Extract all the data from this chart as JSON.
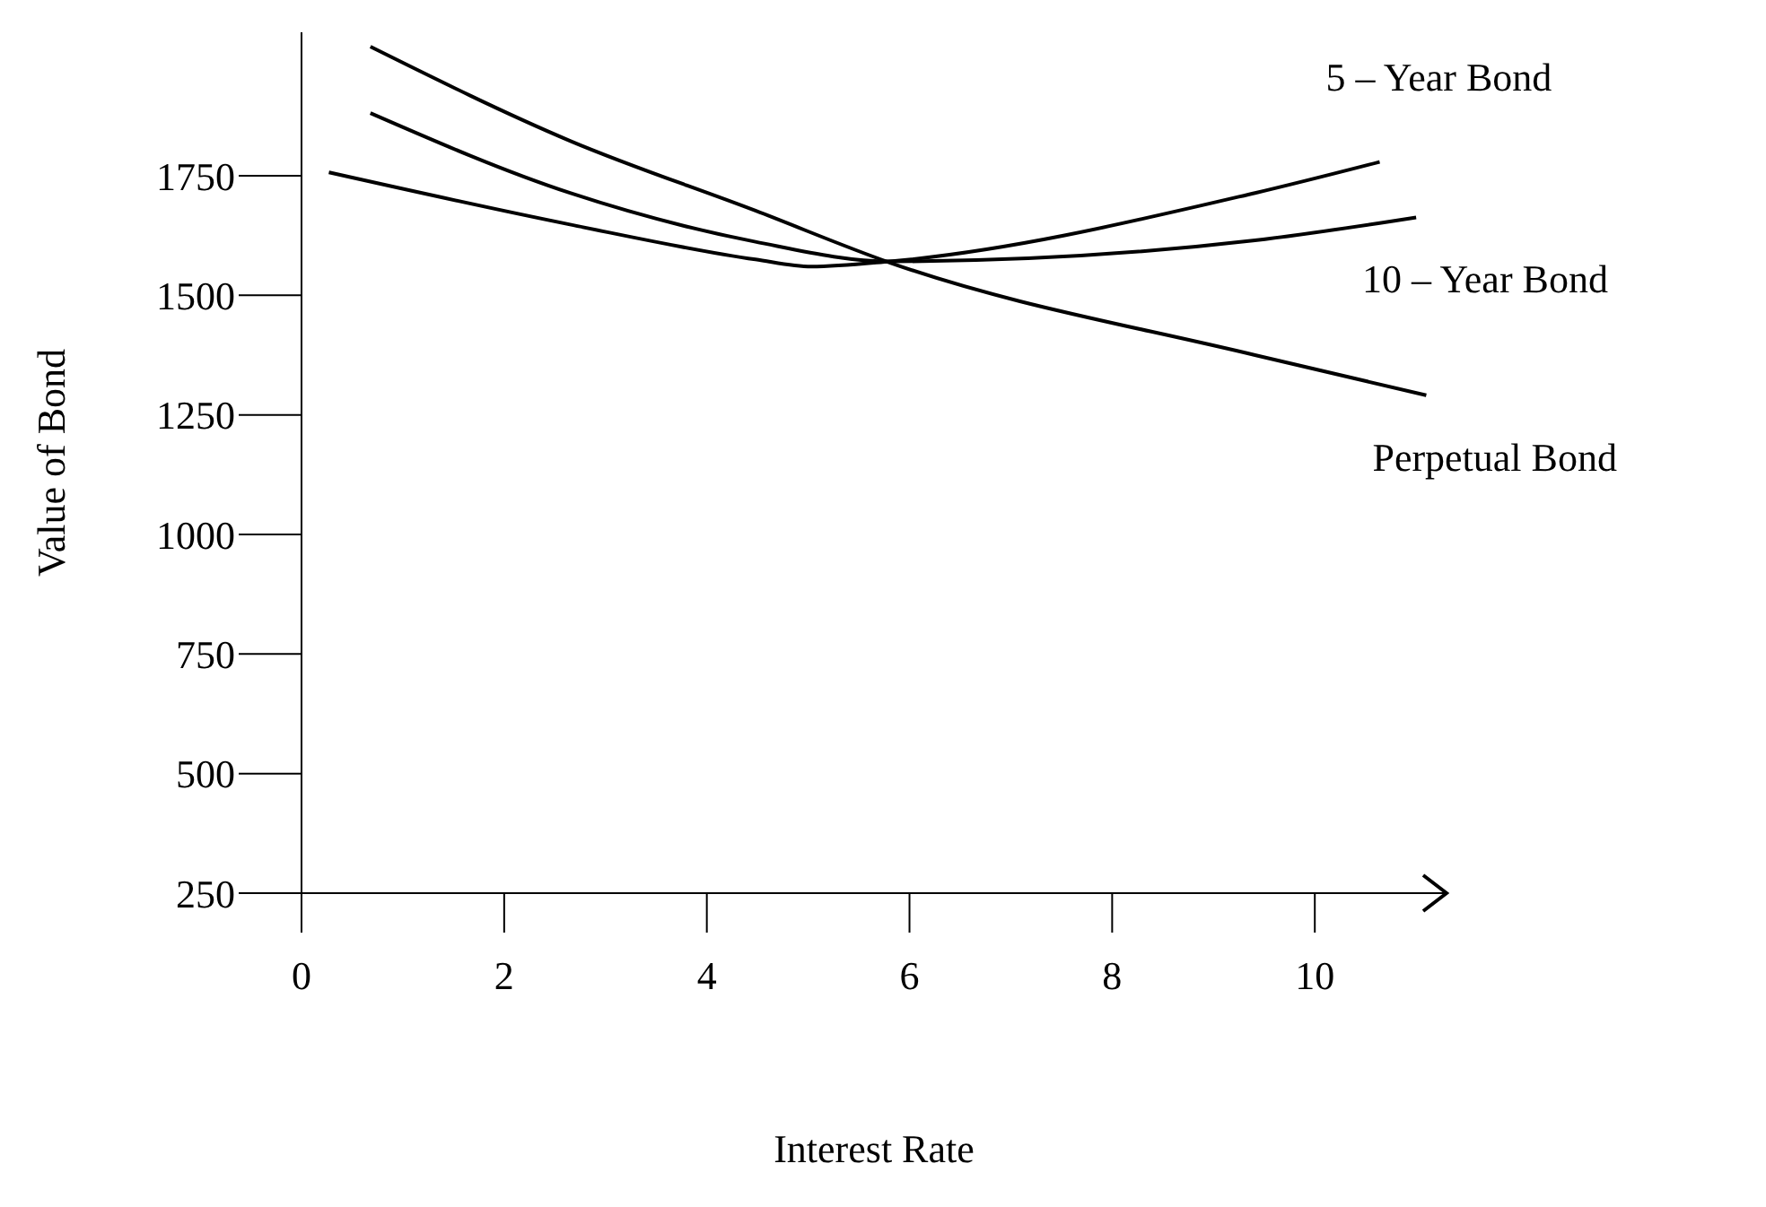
{
  "chart_data": {
    "type": "line",
    "xlabel": "Interest Rate",
    "ylabel": "Value of Bond",
    "xlim": [
      0,
      11.3
    ],
    "xticks": [
      0,
      2,
      4,
      6,
      8,
      10
    ],
    "ylim": [
      250,
      2050
    ],
    "yticks": [
      250,
      500,
      750,
      1000,
      1250,
      1500,
      1750
    ],
    "grid": false,
    "legend": false,
    "marker": "none",
    "line_style": "solid",
    "series": [
      {
        "name": "5 – Year Bond",
        "color": "#000000",
        "x": [
          0.27,
          2.65,
          4.48,
          5.03,
          5.81,
          9.41,
          10.64
        ],
        "values": [
          1757,
          1648,
          1575,
          1560,
          1571,
          1714,
          1779
        ]
      },
      {
        "name": "10 – Year Bond",
        "color": "#000000",
        "x": [
          0.68,
          2.65,
          4.48,
          5.81,
          9.41,
          11.0
        ],
        "values": [
          1881,
          1714,
          1612,
          1571,
          1615,
          1663
        ]
      },
      {
        "name": "Perpetual Bond",
        "color": "#000000",
        "x": [
          0.68,
          2.65,
          4.48,
          5.81,
          9.41,
          11.1
        ],
        "values": [
          2020,
          1823,
          1677,
          1568,
          1375,
          1291
        ]
      }
    ]
  }
}
